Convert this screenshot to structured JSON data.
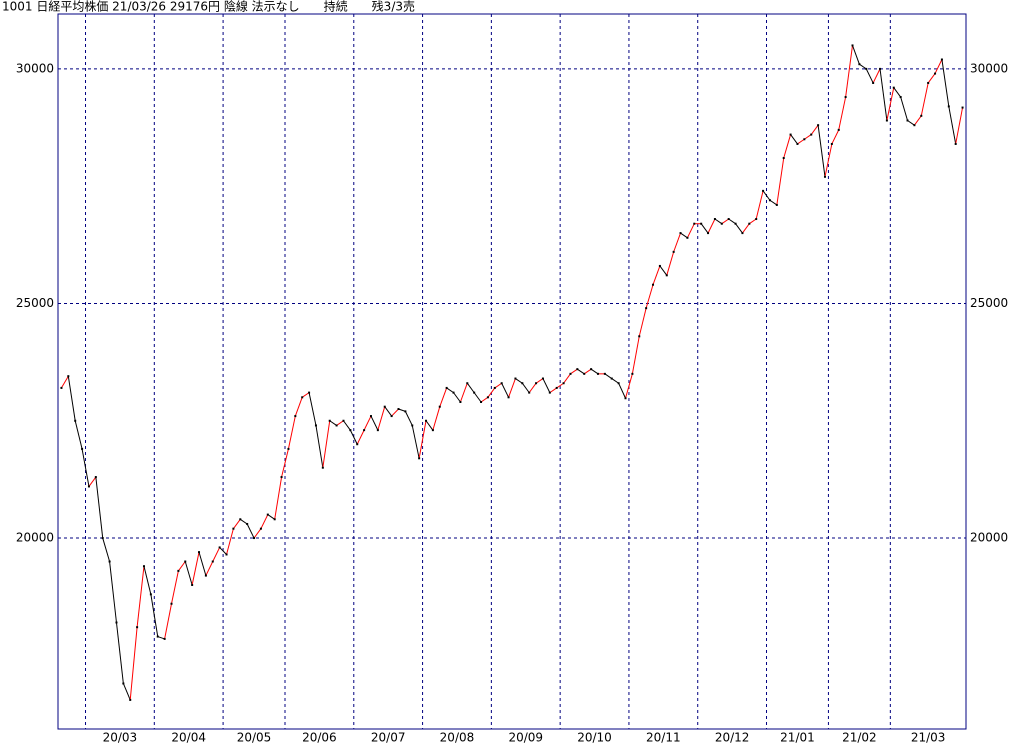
{
  "chart_data": {
    "type": "line",
    "title": "1001 日経平均株価 21/03/26 29176円 陰線 法示なし　　持続　　残3/3売",
    "categories": [
      null,
      "20/03",
      "20/04",
      "20/05",
      "20/06",
      "20/07",
      "20/08",
      "20/09",
      "20/10",
      "20/11",
      "20/12",
      "21/01",
      "21/02",
      "21/03"
    ],
    "values": [
      [
        23200,
        23450,
        22500,
        21900
      ],
      [
        21100,
        21300,
        20000,
        19500,
        18200,
        16900,
        16550,
        18100,
        19400,
        18800
      ],
      [
        17900,
        17850,
        18600,
        19300,
        19500,
        19000,
        19700,
        19200,
        19500,
        19800
      ],
      [
        19650,
        20200,
        20400,
        20300,
        20000,
        20200,
        20500,
        20400,
        21300
      ],
      [
        21900,
        22600,
        23000,
        23100,
        22400,
        21500,
        22500,
        22400,
        22500,
        22300
      ],
      [
        22000,
        22300,
        22600,
        22300,
        22800,
        22600,
        22750,
        22700,
        22400,
        21700
      ],
      [
        22500,
        22300,
        22800,
        23200,
        23100,
        22900,
        23300,
        23100,
        22900,
        23000
      ],
      [
        23200,
        23300,
        23000,
        23400,
        23300,
        23100,
        23300,
        23400,
        23100,
        23200
      ],
      [
        23300,
        23500,
        23600,
        23500,
        23600,
        23500,
        23500,
        23400,
        23300,
        22980
      ],
      [
        23500,
        24300,
        24900,
        25400,
        25800,
        25600,
        26100,
        26500,
        26400,
        26700
      ],
      [
        26700,
        26500,
        26800,
        26700,
        26800,
        26700,
        26500,
        26700,
        26800,
        27400
      ],
      [
        27200,
        27100,
        28100,
        28600,
        28400,
        28500,
        28600,
        28800,
        27700
      ],
      [
        28400,
        28700,
        29400,
        30500,
        30100,
        30000,
        29700,
        30000,
        28900
      ],
      [
        29600,
        29400,
        28900,
        28800,
        29000,
        29700,
        29900,
        30200,
        29200,
        28400,
        29176
      ]
    ],
    "up_color": "#ff0000",
    "down_color": "#000000",
    "marker_color": "#000000",
    "ylim": [
      15930,
      31170
    ],
    "yticks": [
      20000,
      25000,
      30000
    ],
    "grid": true
  }
}
